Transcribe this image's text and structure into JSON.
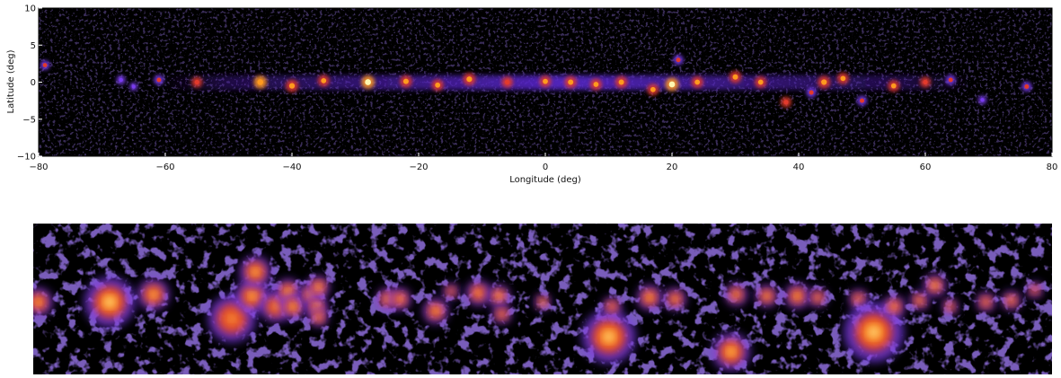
{
  "chart_data": [
    {
      "type": "heatmap",
      "xlabel": "Longitude (deg)",
      "ylabel": "Latitude (deg)",
      "xlim": [
        80,
        -80
      ],
      "ylim": [
        -10,
        10
      ],
      "x_ticks": [
        -80,
        -60,
        -40,
        -20,
        0,
        20,
        40,
        60,
        80
      ],
      "y_ticks": [
        10,
        5,
        0,
        -5,
        -10
      ],
      "x_tick_labels": [
        "−80",
        "−60",
        "−40",
        "−20",
        "0",
        "20",
        "40",
        "60",
        "80"
      ],
      "y_tick_labels": [
        "10",
        "5",
        "0",
        "−5",
        "−10"
      ],
      "colormap": [
        "#000000",
        "#3a0a7a",
        "#7a3cf0",
        "#e23a2c",
        "#ff9a1e",
        "#fff6b0"
      ],
      "sources": [
        {
          "lon": -79,
          "lat": 2.3,
          "intensity": 0.5
        },
        {
          "lon": -67,
          "lat": 0.3,
          "intensity": 0.45
        },
        {
          "lon": -65,
          "lat": -0.6,
          "intensity": 0.35
        },
        {
          "lon": -61,
          "lat": 0.3,
          "intensity": 0.55
        },
        {
          "lon": -55,
          "lat": 0.0,
          "intensity": 0.6
        },
        {
          "lon": -45,
          "lat": 0.0,
          "intensity": 0.85
        },
        {
          "lon": -40,
          "lat": -0.5,
          "intensity": 0.8
        },
        {
          "lon": -35,
          "lat": 0.2,
          "intensity": 0.7
        },
        {
          "lon": -28,
          "lat": 0.0,
          "intensity": 0.9
        },
        {
          "lon": -22,
          "lat": 0.1,
          "intensity": 0.75
        },
        {
          "lon": -17,
          "lat": -0.4,
          "intensity": 0.7
        },
        {
          "lon": -12,
          "lat": 0.4,
          "intensity": 0.8
        },
        {
          "lon": -6,
          "lat": 0.0,
          "intensity": 0.65
        },
        {
          "lon": 0,
          "lat": 0.1,
          "intensity": 0.7
        },
        {
          "lon": 4,
          "lat": 0.0,
          "intensity": 0.75
        },
        {
          "lon": 8,
          "lat": -0.3,
          "intensity": 0.7
        },
        {
          "lon": 12,
          "lat": 0.0,
          "intensity": 0.75
        },
        {
          "lon": 17,
          "lat": -1.0,
          "intensity": 0.7
        },
        {
          "lon": 20,
          "lat": -0.3,
          "intensity": 0.9
        },
        {
          "lon": 21,
          "lat": 3.0,
          "intensity": 0.55
        },
        {
          "lon": 24,
          "lat": 0.0,
          "intensity": 0.7
        },
        {
          "lon": 30,
          "lat": 0.7,
          "intensity": 0.75
        },
        {
          "lon": 34,
          "lat": 0.0,
          "intensity": 0.7
        },
        {
          "lon": 38,
          "lat": -2.7,
          "intensity": 0.6
        },
        {
          "lon": 42,
          "lat": -1.4,
          "intensity": 0.55
        },
        {
          "lon": 44,
          "lat": 0.0,
          "intensity": 0.8
        },
        {
          "lon": 47,
          "lat": 0.5,
          "intensity": 0.7
        },
        {
          "lon": 50,
          "lat": -2.5,
          "intensity": 0.55
        },
        {
          "lon": 55,
          "lat": -0.5,
          "intensity": 0.7
        },
        {
          "lon": 60,
          "lat": 0.0,
          "intensity": 0.6
        },
        {
          "lon": 64,
          "lat": 0.3,
          "intensity": 0.55
        },
        {
          "lon": 69,
          "lat": -2.4,
          "intensity": 0.4
        },
        {
          "lon": 76,
          "lat": -0.6,
          "intensity": 0.55
        }
      ]
    },
    {
      "type": "heatmap",
      "colormap": [
        "#000000",
        "#3a0a7a",
        "#7a3cf0",
        "#e23a2c",
        "#ff9a1e",
        "#fff6b0"
      ],
      "blobs": [
        {
          "u": 0.005,
          "v": 0.52,
          "size": 0.9,
          "intensity": 0.75
        },
        {
          "u": 0.075,
          "v": 0.52,
          "size": 1.6,
          "intensity": 0.9
        },
        {
          "u": 0.118,
          "v": 0.47,
          "size": 1.0,
          "intensity": 0.8
        },
        {
          "u": 0.195,
          "v": 0.63,
          "size": 1.5,
          "intensity": 0.5
        },
        {
          "u": 0.215,
          "v": 0.48,
          "size": 1.1,
          "intensity": 0.75
        },
        {
          "u": 0.218,
          "v": 0.32,
          "size": 1.0,
          "intensity": 0.8
        },
        {
          "u": 0.238,
          "v": 0.55,
          "size": 1.0,
          "intensity": 0.6
        },
        {
          "u": 0.25,
          "v": 0.45,
          "size": 0.8,
          "intensity": 0.85
        },
        {
          "u": 0.255,
          "v": 0.55,
          "size": 0.8,
          "intensity": 0.85
        },
        {
          "u": 0.272,
          "v": 0.47,
          "size": 0.7,
          "intensity": 0.9
        },
        {
          "u": 0.278,
          "v": 0.55,
          "size": 0.7,
          "intensity": 0.85
        },
        {
          "u": 0.28,
          "v": 0.42,
          "size": 0.7,
          "intensity": 0.9
        },
        {
          "u": 0.28,
          "v": 0.62,
          "size": 0.6,
          "intensity": 0.8
        },
        {
          "u": 0.348,
          "v": 0.5,
          "size": 0.7,
          "intensity": 0.8
        },
        {
          "u": 0.36,
          "v": 0.5,
          "size": 0.7,
          "intensity": 0.75
        },
        {
          "u": 0.395,
          "v": 0.58,
          "size": 0.8,
          "intensity": 0.75
        },
        {
          "u": 0.41,
          "v": 0.45,
          "size": 0.5,
          "intensity": 0.6
        },
        {
          "u": 0.437,
          "v": 0.46,
          "size": 0.8,
          "intensity": 0.7
        },
        {
          "u": 0.457,
          "v": 0.48,
          "size": 0.7,
          "intensity": 0.85
        },
        {
          "u": 0.46,
          "v": 0.6,
          "size": 0.6,
          "intensity": 0.7
        },
        {
          "u": 0.5,
          "v": 0.52,
          "size": 0.5,
          "intensity": 1.0
        },
        {
          "u": 0.565,
          "v": 0.75,
          "size": 1.7,
          "intensity": 0.85
        },
        {
          "u": 0.568,
          "v": 0.55,
          "size": 0.6,
          "intensity": 0.65
        },
        {
          "u": 0.605,
          "v": 0.49,
          "size": 0.8,
          "intensity": 0.8
        },
        {
          "u": 0.63,
          "v": 0.5,
          "size": 0.7,
          "intensity": 0.75
        },
        {
          "u": 0.685,
          "v": 0.85,
          "size": 1.2,
          "intensity": 0.8
        },
        {
          "u": 0.69,
          "v": 0.47,
          "size": 0.7,
          "intensity": 0.75
        },
        {
          "u": 0.72,
          "v": 0.48,
          "size": 0.7,
          "intensity": 0.8
        },
        {
          "u": 0.75,
          "v": 0.48,
          "size": 0.8,
          "intensity": 0.8
        },
        {
          "u": 0.77,
          "v": 0.49,
          "size": 0.6,
          "intensity": 0.75
        },
        {
          "u": 0.81,
          "v": 0.5,
          "size": 0.6,
          "intensity": 0.75
        },
        {
          "u": 0.825,
          "v": 0.72,
          "size": 1.9,
          "intensity": 0.85
        },
        {
          "u": 0.845,
          "v": 0.55,
          "size": 0.7,
          "intensity": 0.7
        },
        {
          "u": 0.87,
          "v": 0.51,
          "size": 0.6,
          "intensity": 0.8
        },
        {
          "u": 0.885,
          "v": 0.41,
          "size": 0.7,
          "intensity": 0.85
        },
        {
          "u": 0.9,
          "v": 0.55,
          "size": 0.5,
          "intensity": 0.7
        },
        {
          "u": 0.935,
          "v": 0.52,
          "size": 0.6,
          "intensity": 0.7
        },
        {
          "u": 0.96,
          "v": 0.51,
          "size": 0.6,
          "intensity": 0.75
        },
        {
          "u": 0.983,
          "v": 0.44,
          "size": 0.5,
          "intensity": 0.55
        }
      ]
    }
  ]
}
